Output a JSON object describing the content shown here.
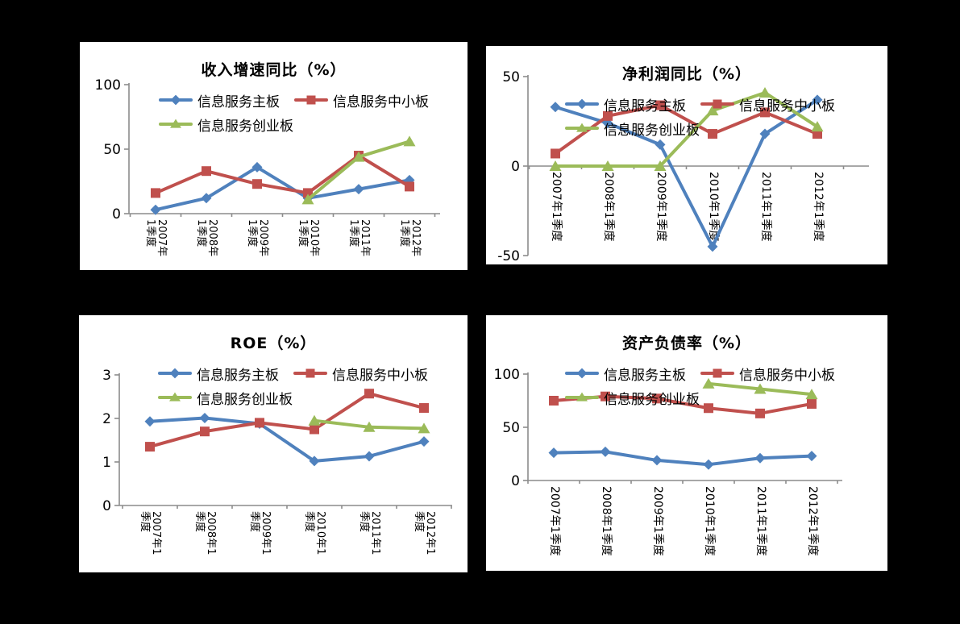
{
  "page": {
    "background": "#000000"
  },
  "palette": [
    "#4F81BD",
    "#C0504D",
    "#9BBB59"
  ],
  "chart_data": [
    {
      "id": "revenue-growth-yoy",
      "type": "line",
      "title": "收入增速同比（%）",
      "xlabel": "",
      "ylabel": "",
      "categories": [
        "2007年1季度",
        "2008年1季度",
        "2009年1季度",
        "2010年1季度",
        "2011年1季度",
        "2012年1季度"
      ],
      "x_tick_lines": [
        [
          "2007年",
          "1季度"
        ],
        [
          "2008年",
          "1季度"
        ],
        [
          "2009年",
          "1季度"
        ],
        [
          "2010年",
          "1季度"
        ],
        [
          "2011年",
          "1季度"
        ],
        [
          "2012年",
          "1季度"
        ]
      ],
      "ylim": [
        0,
        100
      ],
      "y_ticks": [
        0,
        50,
        100
      ],
      "grid": false,
      "legend_position": "inside-top-left",
      "series": [
        {
          "name": "信息服务主板",
          "color": "#4F81BD",
          "marker": "diamond",
          "values": [
            3,
            12,
            36,
            12,
            19,
            26
          ]
        },
        {
          "name": "信息服务中小板",
          "color": "#C0504D",
          "marker": "square",
          "values": [
            16,
            33,
            23,
            16,
            45,
            21
          ]
        },
        {
          "name": "信息服务创业板",
          "color": "#9BBB59",
          "marker": "triangle",
          "values": [
            null,
            null,
            null,
            11,
            44,
            56
          ]
        }
      ]
    },
    {
      "id": "net-profit-yoy",
      "type": "line",
      "title": "净利润同比（%）",
      "xlabel": "",
      "ylabel": "",
      "categories": [
        "2007年1季度",
        "2008年1季度",
        "2009年1季度",
        "2010年1季度",
        "2011年1季度",
        "2012年1季度"
      ],
      "x_tick_lines": [
        [
          "2007年1季度"
        ],
        [
          "2008年1季度"
        ],
        [
          "2009年1季度"
        ],
        [
          "2010年1季度"
        ],
        [
          "2011年1季度"
        ],
        [
          "2012年1季度"
        ]
      ],
      "ylim": [
        -50,
        50
      ],
      "y_ticks": [
        -50,
        0,
        50
      ],
      "grid": false,
      "legend_position": "inside-top-left",
      "series": [
        {
          "name": "信息服务主板",
          "color": "#4F81BD",
          "marker": "diamond",
          "values": [
            33,
            24,
            12,
            -45,
            18,
            37
          ]
        },
        {
          "name": "信息服务中小板",
          "color": "#C0504D",
          "marker": "square",
          "values": [
            7,
            28,
            34,
            18,
            30,
            18
          ]
        },
        {
          "name": "信息服务创业板",
          "color": "#9BBB59",
          "marker": "triangle",
          "values": [
            0,
            0,
            0,
            31,
            41,
            22
          ]
        }
      ]
    },
    {
      "id": "roe",
      "type": "line",
      "title": "ROE（%）",
      "xlabel": "",
      "ylabel": "",
      "categories": [
        "2007年1季度",
        "2008年1季度",
        "2009年1季度",
        "2010年1季度",
        "2011年1季度",
        "2012年1季度"
      ],
      "x_tick_lines": [
        [
          "2007年1",
          "季度"
        ],
        [
          "2008年1",
          "季度"
        ],
        [
          "2009年1",
          "季度"
        ],
        [
          "2010年1",
          "季度"
        ],
        [
          "2011年1",
          "季度"
        ],
        [
          "2012年1",
          "季度"
        ]
      ],
      "ylim": [
        0,
        3
      ],
      "y_ticks": [
        0,
        1,
        2,
        3
      ],
      "grid": false,
      "legend_position": "inside-top-left",
      "series": [
        {
          "name": "信息服务主板",
          "color": "#4F81BD",
          "marker": "diamond",
          "values": [
            1.93,
            2.01,
            1.88,
            1.02,
            1.13,
            1.47
          ]
        },
        {
          "name": "信息服务中小板",
          "color": "#C0504D",
          "marker": "square",
          "values": [
            1.35,
            1.7,
            1.9,
            1.75,
            2.57,
            2.24
          ]
        },
        {
          "name": "信息服务创业板",
          "color": "#9BBB59",
          "marker": "triangle",
          "values": [
            null,
            null,
            null,
            1.95,
            1.8,
            1.77
          ]
        }
      ]
    },
    {
      "id": "debt-to-asset-ratio",
      "type": "line",
      "title": "资产负债率（%）",
      "xlabel": "",
      "ylabel": "",
      "categories": [
        "2007年1季度",
        "2008年1季度",
        "2009年1季度",
        "2010年1季度",
        "2011年1季度",
        "2012年1季度"
      ],
      "x_tick_lines": [
        [
          "2007年1季度"
        ],
        [
          "2008年1季度"
        ],
        [
          "2009年1季度"
        ],
        [
          "2010年1季度"
        ],
        [
          "2011年1季度"
        ],
        [
          "2012年1季度"
        ]
      ],
      "ylim": [
        0,
        100
      ],
      "y_ticks": [
        0,
        50,
        100
      ],
      "grid": false,
      "legend_position": "inside-top-left",
      "series": [
        {
          "name": "信息服务主板",
          "color": "#4F81BD",
          "marker": "diamond",
          "values": [
            26,
            27,
            19,
            15,
            21,
            23
          ]
        },
        {
          "name": "信息服务中小板",
          "color": "#C0504D",
          "marker": "square",
          "values": [
            75,
            79,
            77,
            68,
            63,
            72
          ]
        },
        {
          "name": "信息服务创业板",
          "color": "#9BBB59",
          "marker": "triangle",
          "values": [
            null,
            null,
            null,
            91,
            86,
            81
          ]
        }
      ]
    }
  ]
}
